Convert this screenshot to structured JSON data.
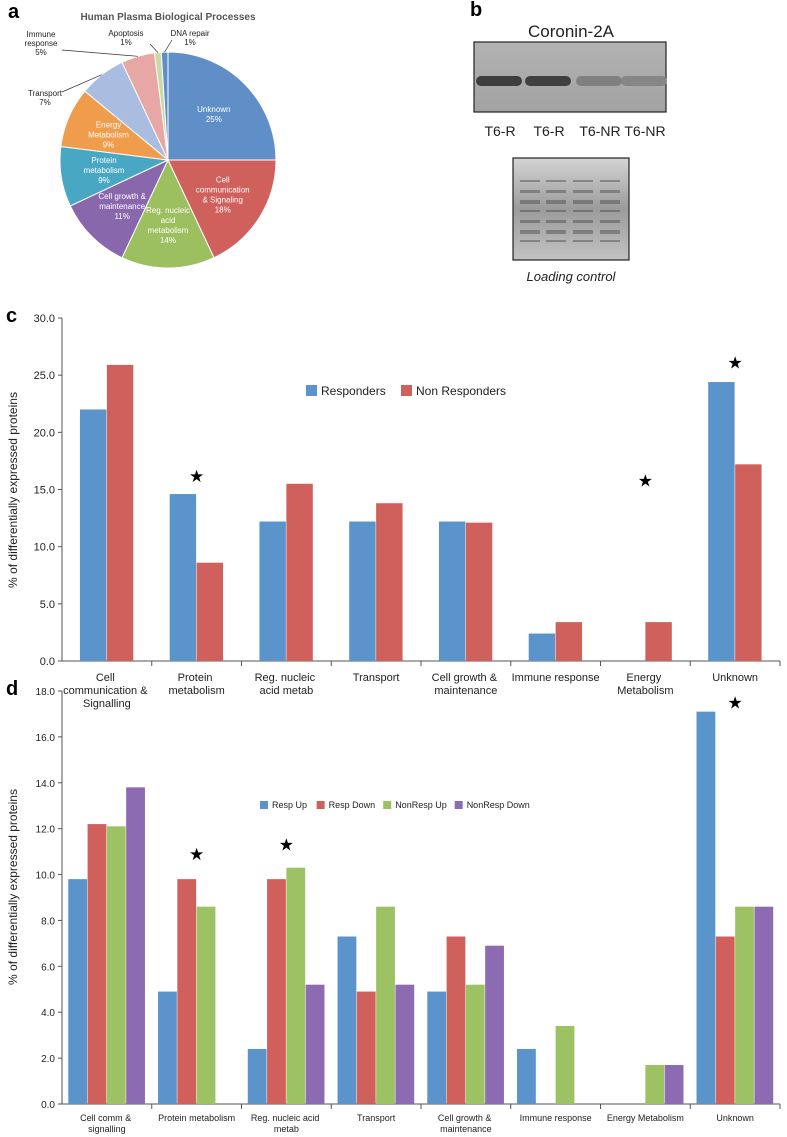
{
  "panels": {
    "a": {
      "letter": "a"
    },
    "b": {
      "letter": "b"
    },
    "c": {
      "letter": "c"
    },
    "d": {
      "letter": "d"
    }
  },
  "blot": {
    "title": "Coronin-2A",
    "lanes": [
      "T6-R",
      "T6-R",
      "T6-NR",
      "T6-NR"
    ],
    "band_intensity": [
      0.9,
      0.88,
      0.35,
      0.3
    ],
    "loading_caption": "Loading control"
  },
  "colors": {
    "blue": "#5b93cb",
    "red": "#d0605b",
    "green": "#9cc263",
    "purple": "#8d6bb3",
    "pie": [
      "#5f8fc6",
      "#d0605b",
      "#9cbf5f",
      "#8867ad",
      "#48a8c4",
      "#ef9c4c",
      "#a9bde0",
      "#e7a7a4",
      "#c8daa5"
    ]
  },
  "chart_data": [
    {
      "type": "pie",
      "title": "Human Plasma Biological Processes",
      "slices": [
        {
          "label": "Unknown",
          "value": 25,
          "pct": "25%"
        },
        {
          "label": "Cell communication & Signaling",
          "value": 18,
          "pct": "18%"
        },
        {
          "label": "Reg. nucleic acid metabolism",
          "value": 14,
          "pct": "14%"
        },
        {
          "label": "Cell growth & maintenance",
          "value": 11,
          "pct": "11%"
        },
        {
          "label": "Protein metabolism",
          "value": 9,
          "pct": "9%"
        },
        {
          "label": "Energy Metabolism",
          "value": 9,
          "pct": "9%"
        },
        {
          "label": "Transport",
          "value": 7,
          "pct": "7%"
        },
        {
          "label": "Immune response",
          "value": 5,
          "pct": "5%"
        },
        {
          "label": "Apoptosis",
          "value": 1,
          "pct": "1%"
        },
        {
          "label": "DNA repair",
          "value": 1,
          "pct": "1%"
        }
      ]
    },
    {
      "type": "bar",
      "ylabel": "% of differentially expressed proteins",
      "ylim": [
        0,
        30
      ],
      "yticks": [
        "0.0",
        "5.0",
        "10.0",
        "15.0",
        "20.0",
        "25.0",
        "30.0"
      ],
      "categories": [
        "Cell communication & Signalling",
        "Protein metabolism",
        "Reg. nucleic acid metab",
        "Transport",
        "Cell growth & maintenance",
        "Immune response",
        "Energy Metabolism",
        "Unknown"
      ],
      "series": [
        {
          "name": "Responders",
          "values": [
            22.0,
            14.6,
            12.2,
            12.2,
            12.2,
            2.4,
            0,
            24.4
          ]
        },
        {
          "name": "Non Responders",
          "values": [
            25.9,
            8.6,
            15.5,
            13.8,
            12.1,
            3.4,
            3.4,
            17.2
          ]
        }
      ],
      "stars": [
        {
          "category": 1,
          "y": 16.2
        },
        {
          "category": 6,
          "y": 15.8
        },
        {
          "category": 7,
          "y": 26.1
        }
      ],
      "legend": "top-center",
      "grid": false
    },
    {
      "type": "bar",
      "ylabel": "% of differentially expressed proteins",
      "ylim": [
        0,
        18
      ],
      "yticks": [
        "0.0",
        "2.0",
        "4.0",
        "6.0",
        "8.0",
        "10.0",
        "12.0",
        "14.0",
        "16.0",
        "18.0"
      ],
      "categories": [
        "Cell comm & signalling",
        "Protein metabolism",
        "Reg. nucleic acid metab",
        "Transport",
        "Cell growth & maintenance",
        "Immune response",
        "Energy Metabolism",
        "Unknown"
      ],
      "series": [
        {
          "name": "Resp Up",
          "values": [
            9.8,
            4.9,
            2.4,
            7.3,
            4.9,
            2.4,
            0,
            17.1
          ]
        },
        {
          "name": "Resp Down",
          "values": [
            12.2,
            9.8,
            9.8,
            4.9,
            7.3,
            0,
            0,
            7.3
          ]
        },
        {
          "name": "NonResp Up",
          "values": [
            12.1,
            8.6,
            10.3,
            8.6,
            5.2,
            3.4,
            1.7,
            8.6
          ]
        },
        {
          "name": "NonResp Down",
          "values": [
            13.8,
            0,
            5.2,
            5.2,
            6.9,
            0,
            1.7,
            8.6
          ]
        }
      ],
      "stars": [
        {
          "category": 1,
          "y": 10.9
        },
        {
          "category": 2,
          "y": 11.3
        },
        {
          "category": 7,
          "y": 17.5
        }
      ],
      "legend": "top-center",
      "grid": false
    }
  ]
}
